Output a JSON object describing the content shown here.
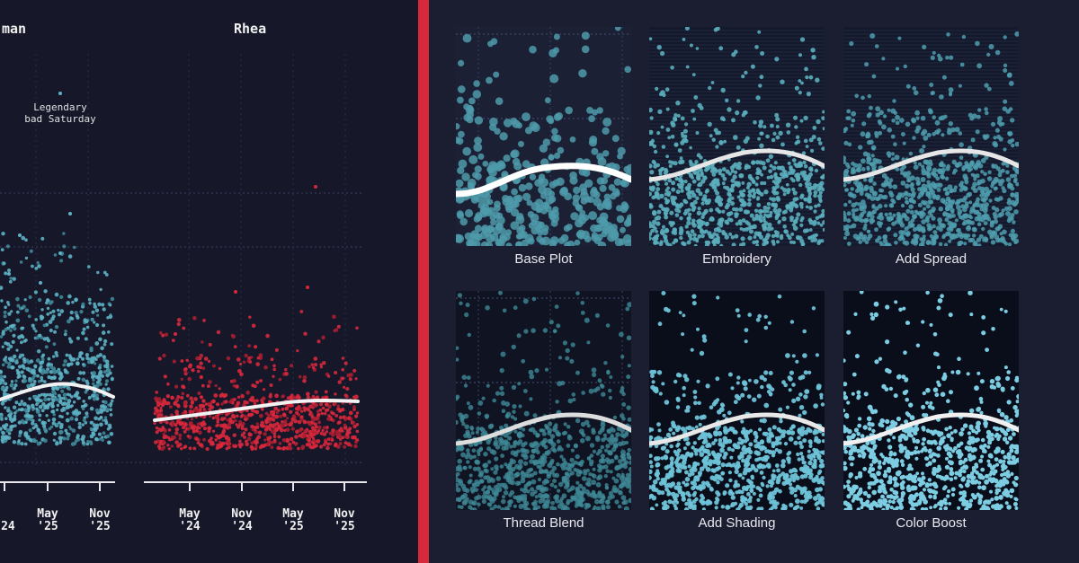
{
  "chart_data": {
    "type": "scatter",
    "panels": [
      {
        "title": "man",
        "color": "#5db3c4",
        "annotation": [
          "Legendary",
          "bad Saturday"
        ],
        "x_ticks": [
          [
            "",
            "'24"
          ],
          [
            "May",
            "'25"
          ],
          [
            "Nov",
            "'25"
          ]
        ]
      },
      {
        "title": "Rhea",
        "color": "#d8283c",
        "x_ticks": [
          [
            "May",
            "'24"
          ],
          [
            "Nov",
            "'24"
          ],
          [
            "May",
            "'25"
          ],
          [
            "Nov",
            "'25"
          ]
        ]
      }
    ]
  },
  "pipeline": {
    "steps": [
      {
        "label": "Base Plot",
        "style": "base"
      },
      {
        "label": "Embroidery",
        "style": "embroidery"
      },
      {
        "label": "Add Spread",
        "style": "spread"
      },
      {
        "label": "Thread Blend",
        "style": "blend"
      },
      {
        "label": "Add Shading",
        "style": "shading"
      },
      {
        "label": "Color Boost",
        "style": "boost"
      }
    ]
  },
  "colors": {
    "accent": "#d6293a",
    "teal": "#5db3c4",
    "red": "#d8283c",
    "trend": "#f2f2f2"
  }
}
